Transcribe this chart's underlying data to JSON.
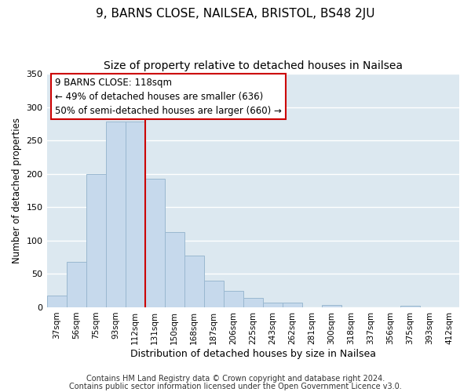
{
  "title": "9, BARNS CLOSE, NAILSEA, BRISTOL, BS48 2JU",
  "subtitle": "Size of property relative to detached houses in Nailsea",
  "xlabel": "Distribution of detached houses by size in Nailsea",
  "ylabel": "Number of detached properties",
  "bar_labels": [
    "37sqm",
    "56sqm",
    "75sqm",
    "93sqm",
    "112sqm",
    "131sqm",
    "150sqm",
    "168sqm",
    "187sqm",
    "206sqm",
    "225sqm",
    "243sqm",
    "262sqm",
    "281sqm",
    "300sqm",
    "318sqm",
    "337sqm",
    "356sqm",
    "375sqm",
    "393sqm",
    "412sqm"
  ],
  "bar_values": [
    18,
    68,
    200,
    278,
    278,
    193,
    113,
    77,
    40,
    25,
    14,
    7,
    7,
    0,
    3,
    0,
    0,
    0,
    2,
    0,
    0
  ],
  "bar_color": "#c6d9ec",
  "bar_edge_color": "#9ab8d0",
  "vline_x": 4.5,
  "vline_color": "#cc0000",
  "ylim": [
    0,
    350
  ],
  "yticks": [
    0,
    50,
    100,
    150,
    200,
    250,
    300,
    350
  ],
  "annotation_title": "9 BARNS CLOSE: 118sqm",
  "annotation_line1": "← 49% of detached houses are smaller (636)",
  "annotation_line2": "50% of semi-detached houses are larger (660) →",
  "footer1": "Contains HM Land Registry data © Crown copyright and database right 2024.",
  "footer2": "Contains public sector information licensed under the Open Government Licence v3.0.",
  "plot_bg_color": "#dce8f0",
  "fig_bg_color": "#ffffff",
  "grid_color": "#ffffff",
  "title_fontsize": 11,
  "subtitle_fontsize": 10,
  "ylabel_fontsize": 8.5,
  "xlabel_fontsize": 9,
  "tick_fontsize": 8,
  "xtick_fontsize": 7.5,
  "footer_fontsize": 7,
  "ann_fontsize": 8.5
}
